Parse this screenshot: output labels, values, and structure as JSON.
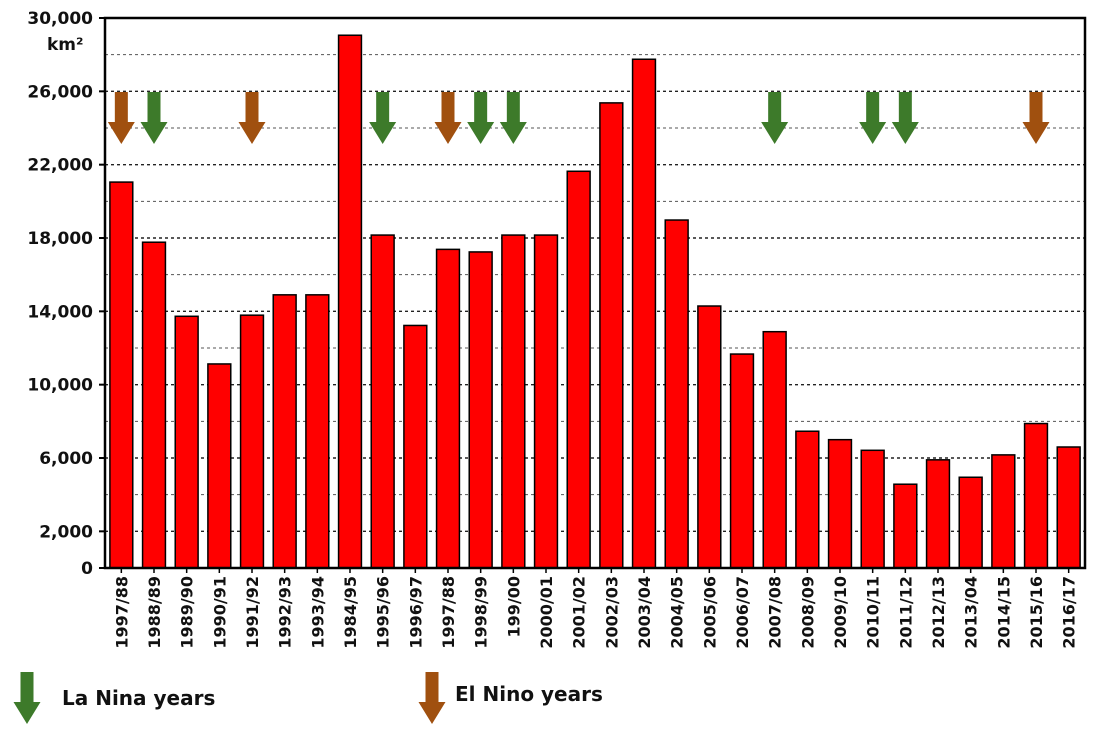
{
  "chart_data": {
    "type": "bar",
    "unit_label": "km²",
    "ylim": [
      0,
      30000
    ],
    "yticks": [
      0,
      2000,
      6000,
      10000,
      14000,
      18000,
      22000,
      26000,
      30000
    ],
    "ytick_labels": [
      "0",
      "2,000",
      "6,000",
      "10,000",
      "14,000",
      "18,000",
      "22,000",
      "26,000",
      "30,000"
    ],
    "grid": "horizontal dashed",
    "categories": [
      "1997/88",
      "1988/89",
      "1989/90",
      "1990/91",
      "1991/92",
      "1992/93",
      "1993/94",
      "1984/95",
      "1995/96",
      "1996/97",
      "1997/88",
      "1998/99",
      "199/00",
      "2000/01",
      "2001/02",
      "2002/03",
      "2003/04",
      "2004/05",
      "2005/06",
      "2006/07",
      "2007/08",
      "2008/09",
      "2009/10",
      "2010/11",
      "2011/12",
      "2012/13",
      "2013/04",
      "2014/15",
      "2015/16",
      "2016/17"
    ],
    "values": [
      21050,
      17770,
      13730,
      11130,
      13790,
      14900,
      14900,
      29060,
      18160,
      13230,
      17380,
      17240,
      18160,
      18160,
      21640,
      25370,
      27750,
      18980,
      14290,
      11670,
      12890,
      7460,
      7000,
      6420,
      4570,
      5900,
      4950,
      6170,
      7880,
      6600
    ],
    "bar_color": "#ff0000",
    "annotations": {
      "la_nina_indices": [
        1,
        8,
        11,
        12,
        20,
        23,
        24
      ],
      "el_nino_indices": [
        0,
        4,
        10,
        28
      ]
    },
    "legend": [
      {
        "label": "La Nina years",
        "color": "#3d7a2a",
        "icon": "down-arrow"
      },
      {
        "label": "El Nino years",
        "color": "#a0500f",
        "icon": "down-arrow"
      }
    ],
    "legend_position": "bottom"
  }
}
